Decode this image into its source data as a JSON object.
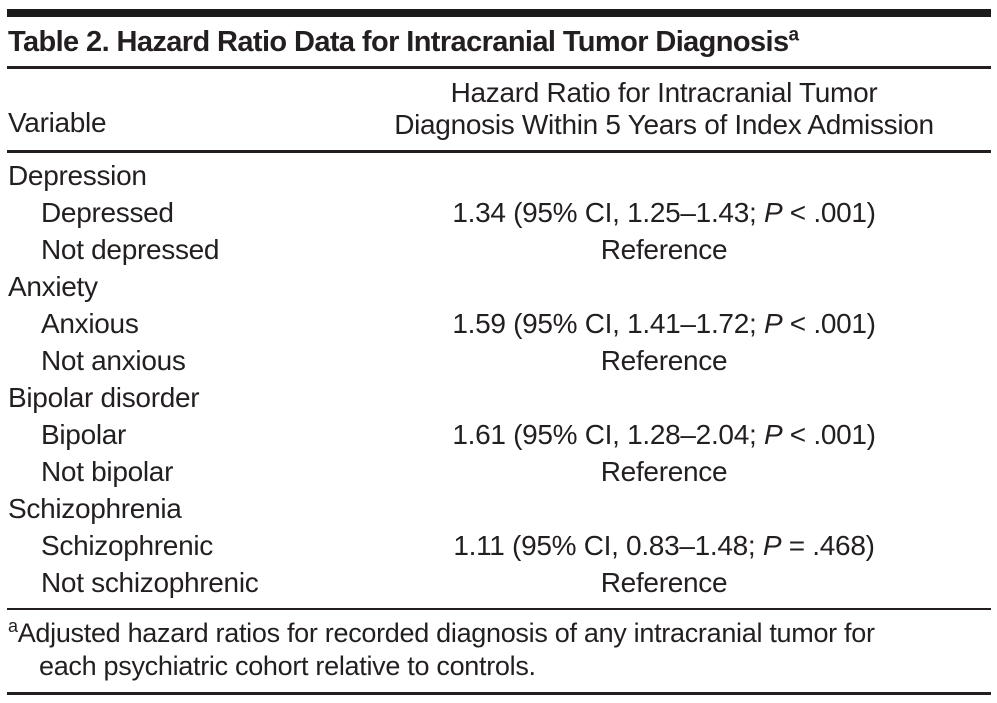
{
  "title": {
    "text": "Table 2. Hazard Ratio Data for Intracranial Tumor Diagnosis",
    "superscript": "a"
  },
  "table": {
    "columns": [
      {
        "label": "Variable"
      },
      {
        "line1": "Hazard Ratio for Intracranial Tumor",
        "line2": "Diagnosis Within 5 Years of Index Admission"
      }
    ],
    "rows": [
      {
        "kind": "group",
        "label": "Depression"
      },
      {
        "kind": "item",
        "label": "Depressed",
        "value_pre": "1.34 (95% CI, 1.25–1.43; ",
        "value_p": "P",
        "value_post": " < .001)"
      },
      {
        "kind": "item",
        "label": "Not depressed",
        "value_pre": "Reference",
        "value_p": "",
        "value_post": ""
      },
      {
        "kind": "group",
        "label": "Anxiety"
      },
      {
        "kind": "item",
        "label": "Anxious",
        "value_pre": "1.59 (95% CI, 1.41–1.72; ",
        "value_p": "P",
        "value_post": " < .001)"
      },
      {
        "kind": "item",
        "label": "Not anxious",
        "value_pre": "Reference",
        "value_p": "",
        "value_post": ""
      },
      {
        "kind": "group",
        "label": "Bipolar disorder"
      },
      {
        "kind": "item",
        "label": "Bipolar",
        "value_pre": "1.61 (95% CI, 1.28–2.04; ",
        "value_p": "P",
        "value_post": " < .001)"
      },
      {
        "kind": "item",
        "label": "Not bipolar",
        "value_pre": "Reference",
        "value_p": "",
        "value_post": ""
      },
      {
        "kind": "group",
        "label": "Schizophrenia"
      },
      {
        "kind": "item",
        "label": "Schizophrenic",
        "value_pre": "1.11 (95% CI, 0.83–1.48; ",
        "value_p": "P",
        "value_post": " = .468)"
      },
      {
        "kind": "item",
        "label": "Not schizophrenic",
        "value_pre": "Reference",
        "value_p": "",
        "value_post": ""
      }
    ]
  },
  "footnote": {
    "marker": "a",
    "line1": "Adjusted hazard ratios for recorded diagnosis of any intracranial tumor for",
    "line2": "each psychiatric cohort relative to controls."
  },
  "colors": {
    "text": "#231f20",
    "rule": "#231f20",
    "top_bar": "#1b1b1b",
    "background": "#ffffff"
  }
}
